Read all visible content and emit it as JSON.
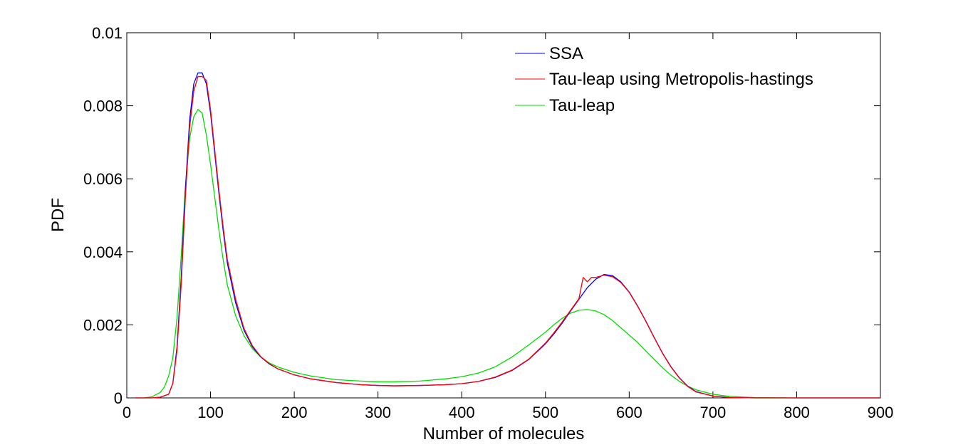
{
  "chart_data": {
    "type": "line",
    "title": "",
    "xlabel": "Number of molecules",
    "ylabel": "PDF",
    "xlim": [
      0,
      900
    ],
    "ylim": [
      0,
      0.01
    ],
    "xticks": [
      0,
      100,
      200,
      300,
      400,
      500,
      600,
      700,
      800,
      900
    ],
    "xtick_labels": [
      "0",
      "100",
      "200",
      "300",
      "400",
      "500",
      "600",
      "700",
      "800",
      "900"
    ],
    "yticks": [
      0,
      0.002,
      0.004,
      0.006,
      0.008,
      0.01
    ],
    "ytick_labels": [
      "0",
      "0.002",
      "0.004",
      "0.006",
      "0.008",
      "0.01"
    ],
    "grid": false,
    "legend_position": "top-right",
    "series": [
      {
        "name": "SSA",
        "color": "#0000ff",
        "x": [
          10,
          30,
          40,
          50,
          55,
          60,
          65,
          70,
          75,
          80,
          85,
          90,
          95,
          100,
          105,
          110,
          115,
          120,
          130,
          140,
          150,
          160,
          170,
          180,
          200,
          220,
          250,
          280,
          300,
          320,
          350,
          380,
          400,
          420,
          440,
          460,
          480,
          500,
          510,
          520,
          530,
          540,
          550,
          560,
          570,
          580,
          590,
          600,
          610,
          620,
          630,
          640,
          650,
          660,
          670,
          680,
          700,
          720,
          750,
          800,
          850,
          900
        ],
        "y": [
          0,
          0,
          2e-05,
          0.0001,
          0.0004,
          0.0014,
          0.0033,
          0.0057,
          0.0076,
          0.0086,
          0.0089,
          0.0089,
          0.0086,
          0.0078,
          0.0067,
          0.0056,
          0.0046,
          0.0037,
          0.0026,
          0.00185,
          0.0014,
          0.00112,
          0.00093,
          0.0008,
          0.00063,
          0.00052,
          0.00042,
          0.00036,
          0.00034,
          0.00033,
          0.00034,
          0.00036,
          0.00039,
          0.00045,
          0.00056,
          0.00075,
          0.00105,
          0.00148,
          0.00175,
          0.00205,
          0.00238,
          0.0027,
          0.00302,
          0.00325,
          0.00338,
          0.00335,
          0.00318,
          0.0029,
          0.00252,
          0.0021,
          0.00165,
          0.00122,
          0.00085,
          0.00055,
          0.00032,
          0.00017,
          5e-05,
          1e-05,
          0,
          0,
          0,
          0
        ]
      },
      {
        "name": "Tau-leap using Metropolis-hastings",
        "color": "#ff0000",
        "x": [
          10,
          30,
          40,
          50,
          55,
          60,
          65,
          70,
          75,
          80,
          85,
          90,
          95,
          100,
          105,
          110,
          115,
          120,
          130,
          140,
          150,
          160,
          170,
          180,
          200,
          220,
          250,
          280,
          300,
          320,
          350,
          380,
          400,
          420,
          440,
          460,
          480,
          500,
          510,
          520,
          530,
          540,
          545,
          550,
          555,
          560,
          570,
          580,
          590,
          600,
          610,
          620,
          630,
          640,
          650,
          660,
          670,
          680,
          700,
          720,
          750,
          800,
          850,
          900
        ],
        "y": [
          0,
          0,
          2e-05,
          0.0001,
          0.0004,
          0.0013,
          0.0031,
          0.0055,
          0.0074,
          0.0084,
          0.0088,
          0.0088,
          0.0087,
          0.0079,
          0.0068,
          0.0057,
          0.0047,
          0.0038,
          0.0027,
          0.0019,
          0.00143,
          0.00113,
          0.00094,
          0.0008,
          0.00063,
          0.00052,
          0.00042,
          0.00036,
          0.00034,
          0.00033,
          0.00034,
          0.00036,
          0.00039,
          0.00045,
          0.00057,
          0.00076,
          0.00106,
          0.0015,
          0.00178,
          0.00208,
          0.0024,
          0.00272,
          0.0033,
          0.00318,
          0.0033,
          0.0033,
          0.00336,
          0.00332,
          0.00316,
          0.00289,
          0.00251,
          0.00209,
          0.00164,
          0.00121,
          0.00084,
          0.00054,
          0.00031,
          0.00016,
          5e-05,
          1e-05,
          0,
          0,
          0,
          0
        ]
      },
      {
        "name": "Tau-leap",
        "color": "#00dd00",
        "x": [
          10,
          20,
          30,
          40,
          45,
          50,
          55,
          60,
          65,
          70,
          75,
          80,
          85,
          90,
          95,
          100,
          105,
          110,
          115,
          120,
          130,
          140,
          150,
          160,
          170,
          180,
          200,
          220,
          250,
          280,
          300,
          320,
          350,
          380,
          400,
          420,
          440,
          460,
          480,
          500,
          510,
          520,
          530,
          540,
          550,
          560,
          570,
          580,
          590,
          600,
          610,
          620,
          630,
          640,
          650,
          660,
          670,
          680,
          700,
          720,
          750,
          800,
          850,
          900
        ],
        "y": [
          0,
          0,
          3e-05,
          0.00015,
          0.0003,
          0.0006,
          0.0011,
          0.0022,
          0.0039,
          0.0058,
          0.0071,
          0.0077,
          0.0079,
          0.0078,
          0.0072,
          0.0064,
          0.0055,
          0.0046,
          0.0038,
          0.0031,
          0.00225,
          0.0017,
          0.00135,
          0.00112,
          0.00096,
          0.00085,
          0.0007,
          0.0006,
          0.0005,
          0.00046,
          0.00044,
          0.00044,
          0.00046,
          0.00052,
          0.00058,
          0.00068,
          0.00085,
          0.00112,
          0.00145,
          0.0018,
          0.002,
          0.00218,
          0.00232,
          0.0024,
          0.00242,
          0.00238,
          0.00228,
          0.00212,
          0.00192,
          0.00172,
          0.00152,
          0.00128,
          0.00105,
          0.00082,
          0.00062,
          0.00045,
          0.00032,
          0.00022,
          0.0001,
          4e-05,
          1e-05,
          0,
          0,
          0
        ]
      }
    ]
  }
}
